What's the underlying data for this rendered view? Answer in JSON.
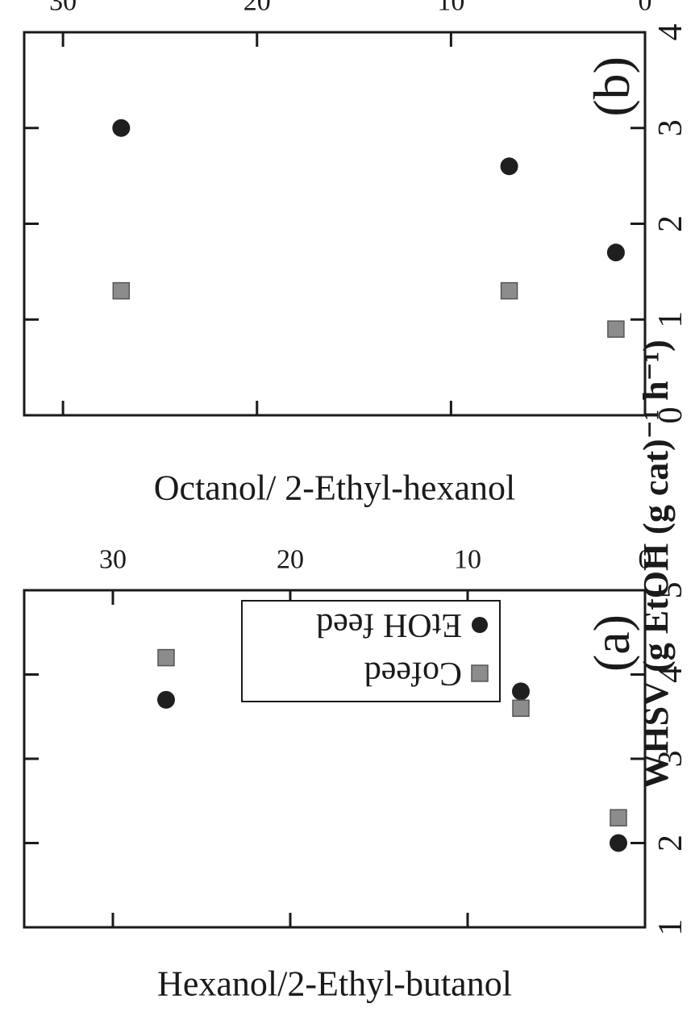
{
  "figure": {
    "xlabel": "WHSV (g EtOH (g cat)⁻¹ h⁻¹)",
    "colors": {
      "axis": "#1a1a1a",
      "circle": "#1f1f1f",
      "square": "#8c8c8c"
    }
  },
  "chart_data": [
    {
      "type": "scatter",
      "panel_label": "(a)",
      "title": "",
      "xlabel": "",
      "ylabel": "Hexanol/2-Ethyl-butanol",
      "xlim": [
        0,
        35
      ],
      "ylim": [
        1,
        5
      ],
      "xticks": [
        0,
        10,
        20,
        30
      ],
      "yticks": [
        1,
        2,
        3,
        4,
        5
      ],
      "grid": false,
      "legend_position": "top-right",
      "series": [
        {
          "name": "EtOH feed",
          "marker": "circle",
          "x": [
            1.5,
            7,
            27
          ],
          "y": [
            2.0,
            3.8,
            3.7
          ]
        },
        {
          "name": "Cofeed",
          "marker": "square",
          "x": [
            1.5,
            7,
            27
          ],
          "y": [
            2.3,
            3.6,
            4.2
          ]
        }
      ]
    },
    {
      "type": "scatter",
      "panel_label": "(b)",
      "title": "",
      "xlabel": "",
      "ylabel": "Octanol/ 2-Ethyl-hexanol",
      "xlim": [
        0,
        32
      ],
      "ylim": [
        0,
        4
      ],
      "xticks": [
        0,
        10,
        20,
        30
      ],
      "yticks": [
        0,
        1,
        2,
        3,
        4
      ],
      "grid": false,
      "series": [
        {
          "name": "EtOH feed",
          "marker": "circle",
          "x": [
            1.5,
            7,
            27
          ],
          "y": [
            1.7,
            2.6,
            3.0
          ]
        },
        {
          "name": "Cofeed",
          "marker": "square",
          "x": [
            1.5,
            7,
            27
          ],
          "y": [
            0.9,
            1.3,
            1.3
          ]
        }
      ]
    }
  ]
}
